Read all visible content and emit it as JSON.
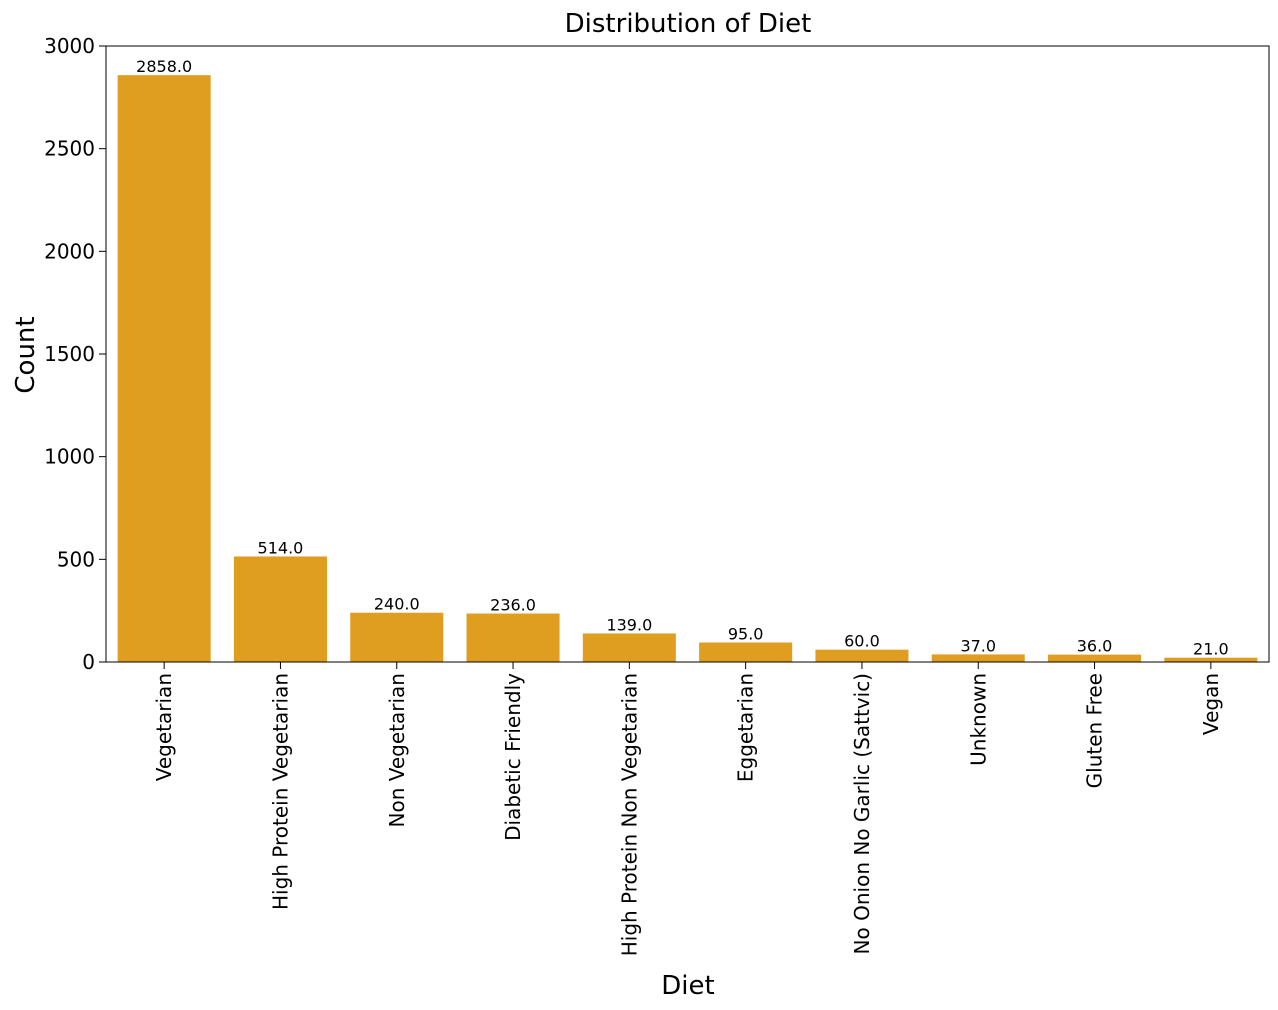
{
  "chart_data": {
    "type": "bar",
    "title": "Distribution of Diet",
    "xlabel": "Diet",
    "ylabel": "Count",
    "categories": [
      "Vegetarian",
      "High Protein Vegetarian",
      "Non Vegetarian",
      "Diabetic Friendly",
      "High Protein Non Vegetarian",
      "Eggetarian",
      "No Onion No Garlic (Sattvic)",
      "Unknown",
      "Gluten Free",
      "Vegan"
    ],
    "values": [
      2858,
      514,
      240,
      236,
      139,
      95,
      60,
      37,
      36,
      21
    ],
    "data_labels": [
      "2858.0",
      "514.0",
      "240.0",
      "236.0",
      "139.0",
      "95.0",
      "60.0",
      "37.0",
      "36.0",
      "21.0"
    ],
    "ylim": [
      0,
      3000
    ],
    "yticks": [
      0,
      500,
      1000,
      1500,
      2000,
      2500,
      3000
    ],
    "x_tick_rotation": "vertical",
    "bar_color": "#e09e20",
    "grid": false,
    "legend": "none"
  }
}
